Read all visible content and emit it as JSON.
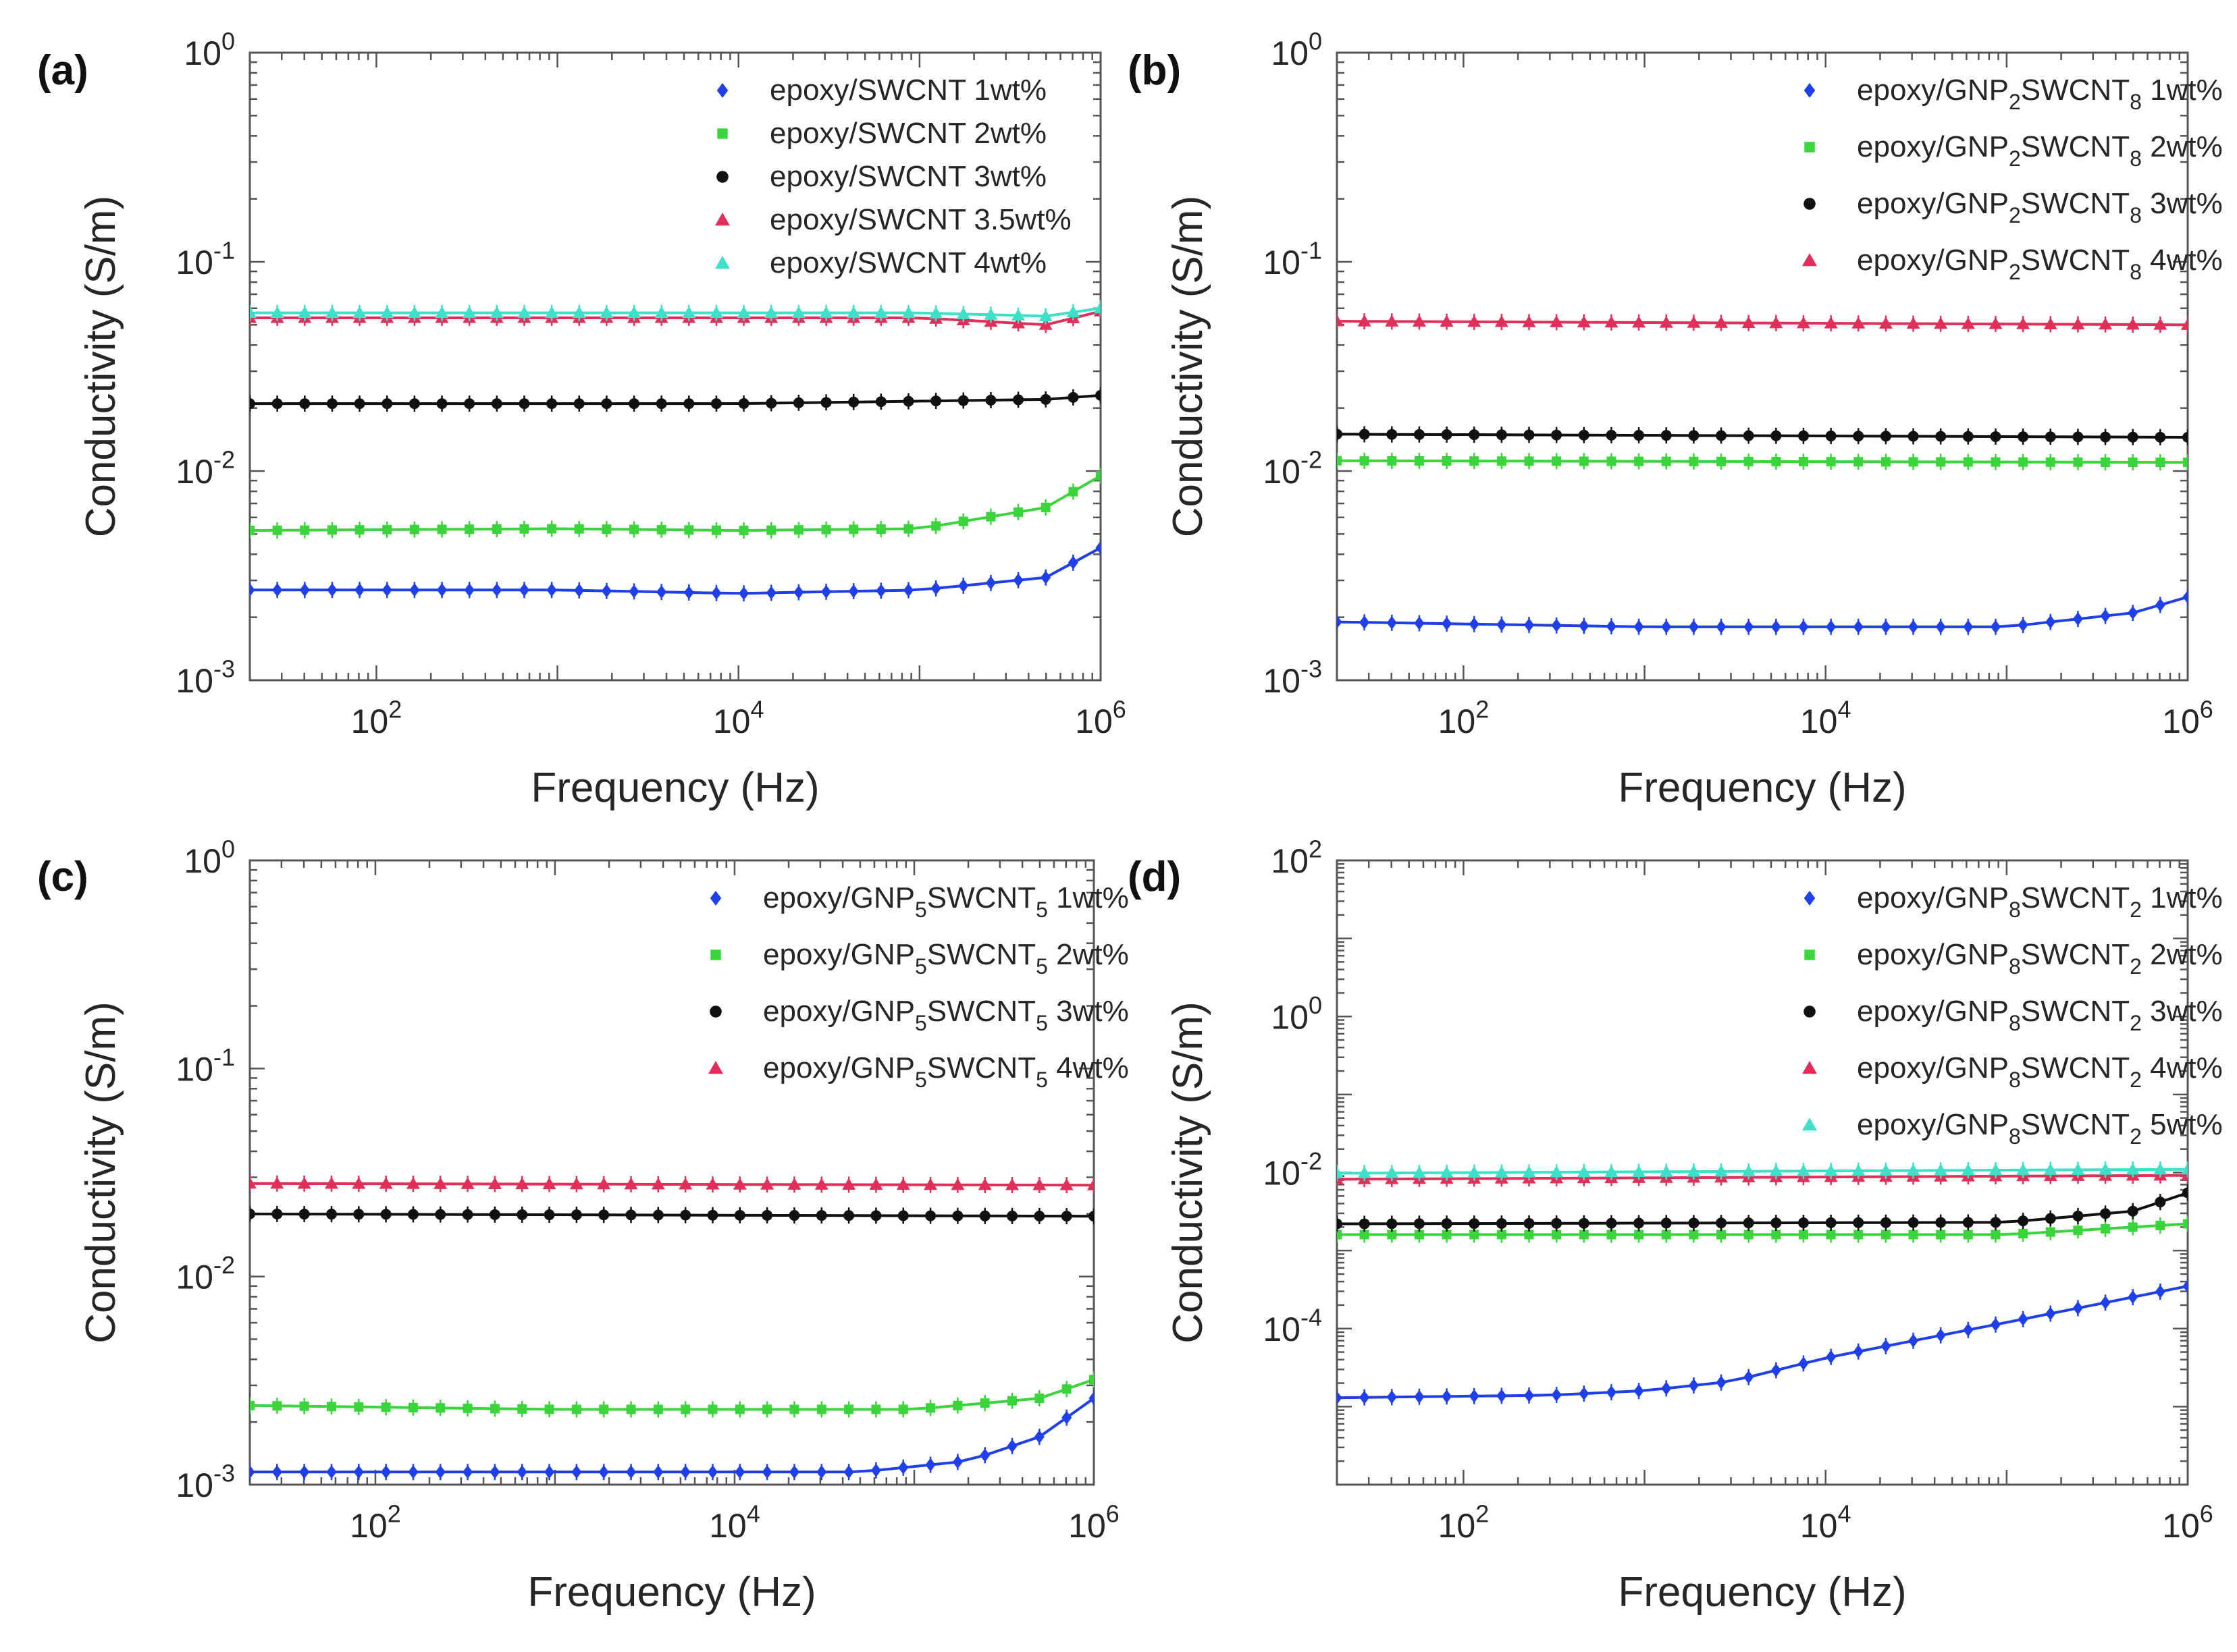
{
  "figure": {
    "panels": [
      "(a)",
      "(b)",
      "(c)",
      "(d)"
    ],
    "colors": {
      "blue": "#1f3fe8",
      "green": "#3cd43c",
      "black": "#111111",
      "red": "#e0305a",
      "cyan": "#3fe0c8",
      "axis": "#555555"
    }
  },
  "chart_data": [
    {
      "panel": "(a)",
      "type": "scatter",
      "title": "",
      "xlabel": "Frequency (Hz)",
      "ylabel": "Conductivity (S/m)",
      "xscale": "log",
      "yscale": "log",
      "xlim": [
        20,
        1000000
      ],
      "ylim": [
        0.001,
        1
      ],
      "xticks": [
        "10^2",
        "10^4",
        "10^6"
      ],
      "yticks": [
        "10^-3",
        "10^-2",
        "10^-1",
        "10^0"
      ],
      "legend_position": "top-right",
      "series": [
        {
          "name": "epoxy/SWCNT 1wt%",
          "color": "blue",
          "marker": "diamond",
          "points": [
            [
              20,
              0.0027
            ],
            [
              1000,
              0.0027
            ],
            [
              10000,
              0.0026
            ],
            [
              100000,
              0.0027
            ],
            [
              500000,
              0.0031
            ],
            [
              1000000,
              0.0043
            ]
          ]
        },
        {
          "name": "epoxy/SWCNT 2wt%",
          "color": "green",
          "marker": "square",
          "points": [
            [
              20,
              0.0052
            ],
            [
              1000,
              0.0053
            ],
            [
              10000,
              0.0052
            ],
            [
              100000,
              0.0053
            ],
            [
              500000,
              0.0067
            ],
            [
              1000000,
              0.0095
            ]
          ]
        },
        {
          "name": "epoxy/SWCNT 3wt%",
          "color": "black",
          "marker": "circle",
          "points": [
            [
              20,
              0.021
            ],
            [
              10000,
              0.021
            ],
            [
              500000,
              0.022
            ],
            [
              1000000,
              0.023
            ]
          ]
        },
        {
          "name": "epoxy/SWCNT 3.5wt%",
          "color": "red",
          "marker": "triangle",
          "points": [
            [
              20,
              0.054
            ],
            [
              100000,
              0.054
            ],
            [
              500000,
              0.05
            ],
            [
              1000000,
              0.058
            ]
          ]
        },
        {
          "name": "epoxy/SWCNT 4wt%",
          "color": "cyan",
          "marker": "triangle",
          "points": [
            [
              20,
              0.057
            ],
            [
              100000,
              0.057
            ],
            [
              500000,
              0.055
            ],
            [
              1000000,
              0.06
            ]
          ]
        }
      ]
    },
    {
      "panel": "(b)",
      "type": "scatter",
      "title": "",
      "xlabel": "Frequency (Hz)",
      "ylabel": "Conductivity (S/m)",
      "xscale": "log",
      "yscale": "log",
      "xlim": [
        20,
        1000000
      ],
      "ylim": [
        0.001,
        1
      ],
      "xticks": [
        "10^2",
        "10^4",
        "10^6"
      ],
      "yticks": [
        "10^-3",
        "10^-2",
        "10^-1",
        "10^0"
      ],
      "legend_position": "top-right",
      "series": [
        {
          "name": "epoxy/GNP2SWCNT8 1wt%",
          "legend_parts": [
            "epoxy/GNP",
            "2",
            "SWCNT",
            "8",
            " 1wt%"
          ],
          "color": "blue",
          "marker": "diamond",
          "points": [
            [
              20,
              0.0019
            ],
            [
              1000,
              0.0018
            ],
            [
              100000,
              0.0018
            ],
            [
              500000,
              0.0021
            ],
            [
              1000000,
              0.0025
            ]
          ]
        },
        {
          "name": "epoxy/GNP2SWCNT8 2wt%",
          "legend_parts": [
            "epoxy/GNP",
            "2",
            "SWCNT",
            "8",
            " 2wt%"
          ],
          "color": "green",
          "marker": "square",
          "points": [
            [
              20,
              0.0112
            ],
            [
              1000000,
              0.011
            ]
          ]
        },
        {
          "name": "epoxy/GNP2SWCNT8 3wt%",
          "legend_parts": [
            "epoxy/GNP",
            "2",
            "SWCNT",
            "8",
            " 3wt%"
          ],
          "color": "black",
          "marker": "circle",
          "points": [
            [
              20,
              0.015
            ],
            [
              1000000,
              0.0145
            ]
          ]
        },
        {
          "name": "epoxy/GNP2SWCNT8 4wt%",
          "legend_parts": [
            "epoxy/GNP",
            "2",
            "SWCNT",
            "8",
            " 4wt%"
          ],
          "color": "red",
          "marker": "triangle",
          "points": [
            [
              20,
              0.052
            ],
            [
              1000000,
              0.05
            ]
          ]
        }
      ]
    },
    {
      "panel": "(c)",
      "type": "scatter",
      "title": "",
      "xlabel": "Frequency (Hz)",
      "ylabel": "Conductivity (S/m)",
      "xscale": "log",
      "yscale": "log",
      "xlim": [
        20,
        1000000
      ],
      "ylim": [
        0.001,
        1
      ],
      "xticks": [
        "10^2",
        "10^4",
        "10^6"
      ],
      "yticks": [
        "10^-3",
        "10^-2",
        "10^-1",
        "10^0"
      ],
      "legend_position": "top-right",
      "series": [
        {
          "name": "epoxy/GNP5SWCNT5 1wt%",
          "legend_parts": [
            "epoxy/GNP",
            "5",
            "SWCNT",
            "5",
            " 1wt%"
          ],
          "color": "blue",
          "marker": "diamond",
          "points": [
            [
              20,
              0.00115
            ],
            [
              50000,
              0.00115
            ],
            [
              200000,
              0.0013
            ],
            [
              500000,
              0.0017
            ],
            [
              1000000,
              0.0026
            ]
          ]
        },
        {
          "name": "epoxy/GNP5SWCNT5 2wt%",
          "legend_parts": [
            "epoxy/GNP",
            "5",
            "SWCNT",
            "5",
            " 2wt%"
          ],
          "color": "green",
          "marker": "square",
          "points": [
            [
              20,
              0.0024
            ],
            [
              1000,
              0.0023
            ],
            [
              100000,
              0.0023
            ],
            [
              500000,
              0.0026
            ],
            [
              1000000,
              0.0032
            ]
          ]
        },
        {
          "name": "epoxy/GNP5SWCNT5 3wt%",
          "legend_parts": [
            "epoxy/GNP",
            "5",
            "SWCNT",
            "5",
            " 3wt%"
          ],
          "color": "black",
          "marker": "circle",
          "points": [
            [
              20,
              0.02
            ],
            [
              1000000,
              0.0195
            ]
          ]
        },
        {
          "name": "epoxy/GNP5SWCNT5 4wt%",
          "legend_parts": [
            "epoxy/GNP",
            "5",
            "SWCNT",
            "5",
            " 4wt%"
          ],
          "color": "red",
          "marker": "triangle",
          "points": [
            [
              20,
              0.028
            ],
            [
              1000000,
              0.0275
            ]
          ]
        }
      ]
    },
    {
      "panel": "(d)",
      "type": "scatter",
      "title": "",
      "xlabel": "Frequency (Hz)",
      "ylabel": "Conductivity (S/m)",
      "xscale": "log",
      "yscale": "log",
      "xlim": [
        20,
        1000000
      ],
      "ylim": [
        1e-06,
        100
      ],
      "xticks": [
        "10^2",
        "10^4",
        "10^6"
      ],
      "yticks": [
        "10^-4",
        "10^-2",
        "10^0",
        "10^2"
      ],
      "legend_position": "top-right",
      "series": [
        {
          "name": "epoxy/GNP8SWCNT2 1wt%",
          "legend_parts": [
            "epoxy/GNP",
            "8",
            "SWCNT",
            "2",
            " 1wt%"
          ],
          "color": "blue",
          "marker": "diamond",
          "points": [
            [
              20,
              1.3e-05
            ],
            [
              300,
              1.4e-05
            ],
            [
              1000,
              1.6e-05
            ],
            [
              3000,
              2.1e-05
            ],
            [
              10000,
              4.2e-05
            ],
            [
              100000,
              0.00012
            ],
            [
              1000000,
              0.00035
            ]
          ]
        },
        {
          "name": "epoxy/GNP8SWCNT2 2wt%",
          "legend_parts": [
            "epoxy/GNP",
            "8",
            "SWCNT",
            "2",
            " 2wt%"
          ],
          "color": "green",
          "marker": "square",
          "points": [
            [
              20,
              0.0016
            ],
            [
              100000,
              0.0016
            ],
            [
              1000000,
              0.0022
            ]
          ]
        },
        {
          "name": "epoxy/GNP8SWCNT2 3wt%",
          "legend_parts": [
            "epoxy/GNP",
            "8",
            "SWCNT",
            "2",
            " 3wt%"
          ],
          "color": "black",
          "marker": "circle",
          "points": [
            [
              20,
              0.0022
            ],
            [
              100000,
              0.0023
            ],
            [
              500000,
              0.0032
            ],
            [
              1000000,
              0.0055
            ]
          ]
        },
        {
          "name": "epoxy/GNP8SWCNT2 4wt%",
          "legend_parts": [
            "epoxy/GNP",
            "8",
            "SWCNT",
            "2",
            " 4wt%"
          ],
          "color": "red",
          "marker": "triangle",
          "points": [
            [
              20,
              0.0082
            ],
            [
              1000000,
              0.0092
            ]
          ]
        },
        {
          "name": "epoxy/GNP8SWCNT2 5wt%",
          "legend_parts": [
            "epoxy/GNP",
            "8",
            "SWCNT",
            "2",
            " 5wt%"
          ],
          "color": "cyan",
          "marker": "triangle",
          "points": [
            [
              20,
              0.0098
            ],
            [
              1000000,
              0.011
            ]
          ]
        }
      ]
    }
  ]
}
